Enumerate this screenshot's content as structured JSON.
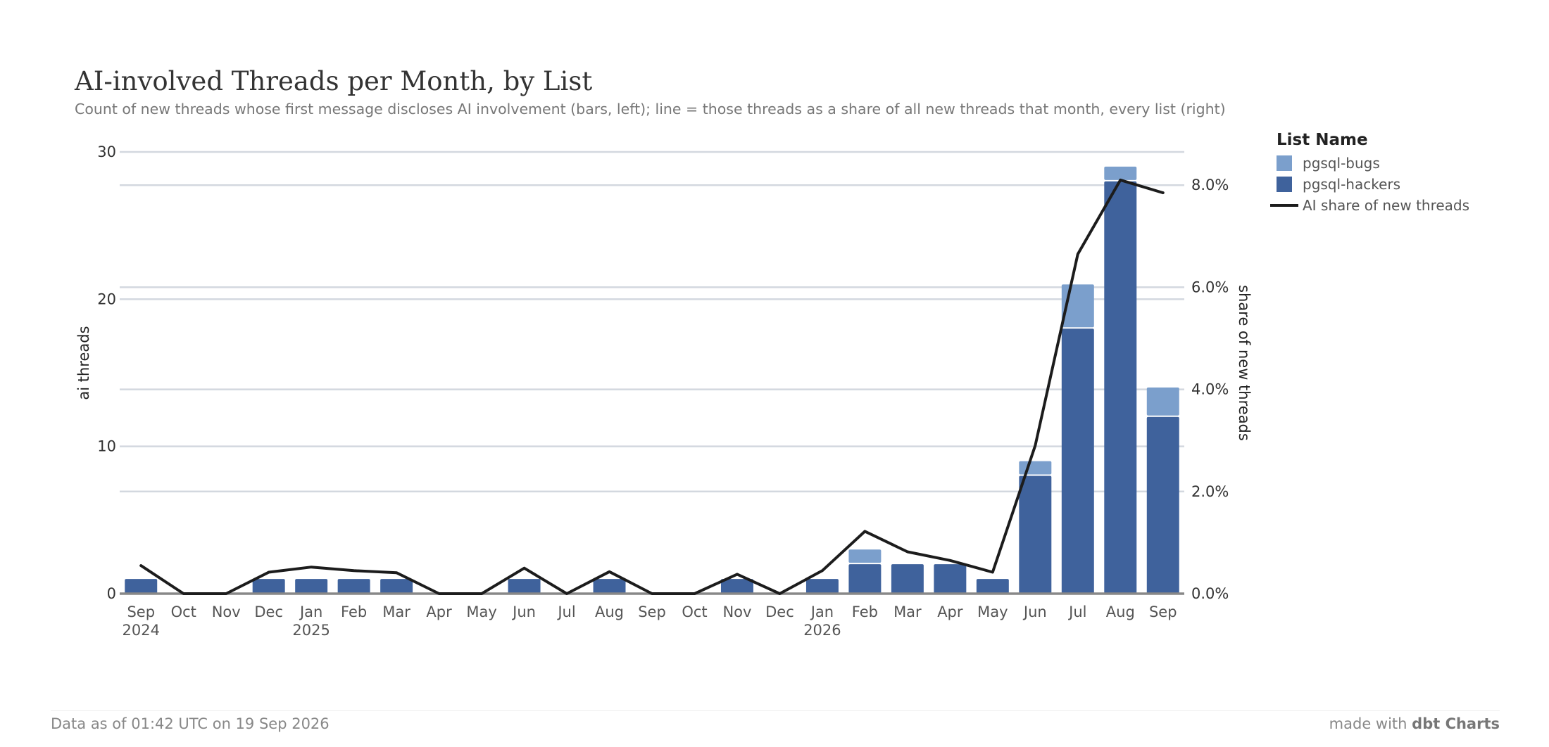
{
  "chart_data": {
    "type": "bar",
    "stacked": true,
    "title": "AI-involved Threads per Month, by List",
    "subtitle": "Count of new threads whose first message discloses AI involvement (bars, left); line = those threads as a share of all new threads that month, every list (right)",
    "categories": [
      "Sep 2024",
      "Oct 2024",
      "Nov 2024",
      "Dec 2024",
      "Jan 2025",
      "Feb 2025",
      "Mar 2025",
      "Apr 2025",
      "May 2025",
      "Jun 2025",
      "Jul 2025",
      "Aug 2025",
      "Sep 2025",
      "Oct 2025",
      "Nov 2025",
      "Dec 2025",
      "Jan 2026",
      "Feb 2026",
      "Mar 2026",
      "Apr 2026",
      "May 2026",
      "Jun 2026",
      "Jul 2026",
      "Aug 2026",
      "Sep 2026"
    ],
    "tick_labels": [
      "Sep",
      "Oct",
      "Nov",
      "Dec",
      "Jan",
      "Feb",
      "Mar",
      "Apr",
      "May",
      "Jun",
      "Jul",
      "Aug",
      "Sep",
      "Oct",
      "Nov",
      "Dec",
      "Jan",
      "Feb",
      "Mar",
      "Apr",
      "May",
      "Jun",
      "Jul",
      "Aug",
      "Sep"
    ],
    "year_labels": [
      {
        "index": 0,
        "label": "2024"
      },
      {
        "index": 4,
        "label": "2025"
      },
      {
        "index": 16,
        "label": "2026"
      }
    ],
    "series": [
      {
        "name": "pgsql-hackers",
        "color": "#3f629c",
        "values": [
          1,
          0,
          0,
          1,
          1,
          1,
          1,
          0,
          0,
          1,
          0,
          1,
          0,
          0,
          1,
          0,
          1,
          2,
          2,
          2,
          1,
          8,
          18,
          28,
          12
        ]
      },
      {
        "name": "pgsql-bugs",
        "color": "#7b9fcc",
        "values": [
          0,
          0,
          0,
          0,
          0,
          0,
          0,
          0,
          0,
          0,
          0,
          0,
          0,
          0,
          0,
          0,
          0,
          1,
          0,
          0,
          0,
          1,
          3,
          1,
          2
        ]
      }
    ],
    "line_series": {
      "name": "AI share of new threads",
      "color": "#1c1c1c",
      "axis": "right",
      "values": [
        0.55,
        0,
        0,
        0.42,
        0.52,
        0.45,
        0.41,
        0,
        0,
        0.5,
        0,
        0.43,
        0,
        0,
        0.38,
        0,
        0.45,
        1.22,
        0.82,
        0.65,
        0.42,
        2.9,
        6.65,
        8.1,
        7.85
      ]
    },
    "ylabel": "ai threads",
    "y2label": "share of new threads",
    "ylim": [
      0,
      30
    ],
    "yticks": [
      "0",
      "10",
      "20",
      "30"
    ],
    "y2lim": [
      0,
      8.65
    ],
    "y2ticks": [
      "0.0%",
      "2.0%",
      "4.0%",
      "6.0%",
      "8.0%"
    ],
    "grid": true,
    "legend": {
      "title": "List Name",
      "position": "right",
      "entries": [
        "pgsql-bugs",
        "pgsql-hackers",
        "AI share of new threads"
      ]
    }
  },
  "footer": {
    "left": "Data as of 01:42 UTC on 19 Sep 2026",
    "right_prefix": "made with ",
    "right_brand": "dbt Charts"
  }
}
